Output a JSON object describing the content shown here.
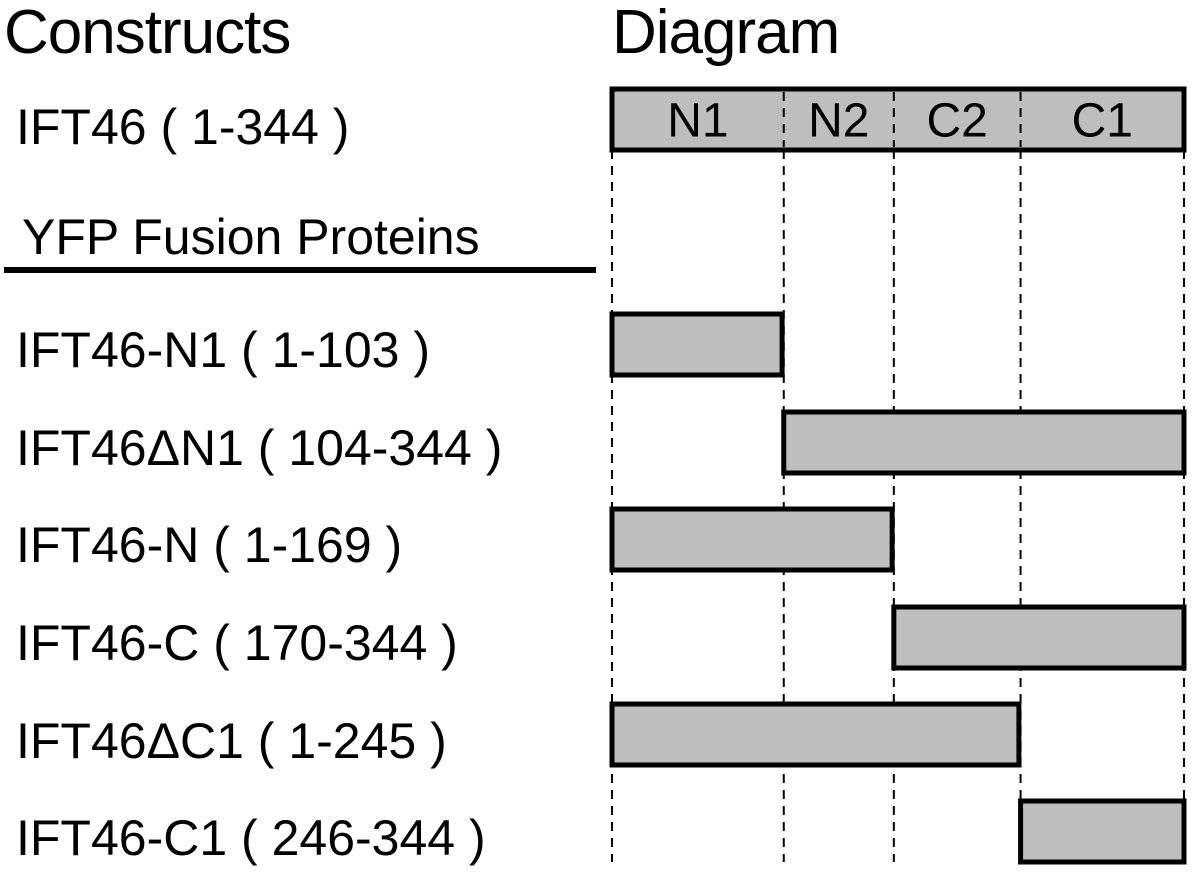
{
  "headings": {
    "constructs": "Constructs",
    "diagram": "Diagram"
  },
  "full_length": {
    "label": "IFT46 ( 1-344 )",
    "start": 1,
    "end": 344
  },
  "section_label": "YFP Fusion Proteins",
  "domains": [
    {
      "name": "N1",
      "start": 1,
      "end": 103
    },
    {
      "name": "N2",
      "start": 104,
      "end": 169
    },
    {
      "name": "C2",
      "start": 170,
      "end": 245
    },
    {
      "name": "C1",
      "start": 246,
      "end": 344
    }
  ],
  "constructs": [
    {
      "label": "IFT46-N1 ( 1-103 )",
      "start": 1,
      "end": 103
    },
    {
      "label": "IFT46ΔN1 ( 104-344 )",
      "start": 104,
      "end": 344
    },
    {
      "label": "IFT46-N ( 1-169 )",
      "start": 1,
      "end": 169
    },
    {
      "label": "IFT46-C ( 170-344 )",
      "start": 170,
      "end": 344
    },
    {
      "label": "IFT46ΔC1 ( 1-245 )",
      "start": 1,
      "end": 245
    },
    {
      "label": "IFT46-C1 ( 246-344 )",
      "start": 246,
      "end": 344
    }
  ],
  "colors": {
    "bar_fill": "#bebebe",
    "stroke": "#000000"
  }
}
